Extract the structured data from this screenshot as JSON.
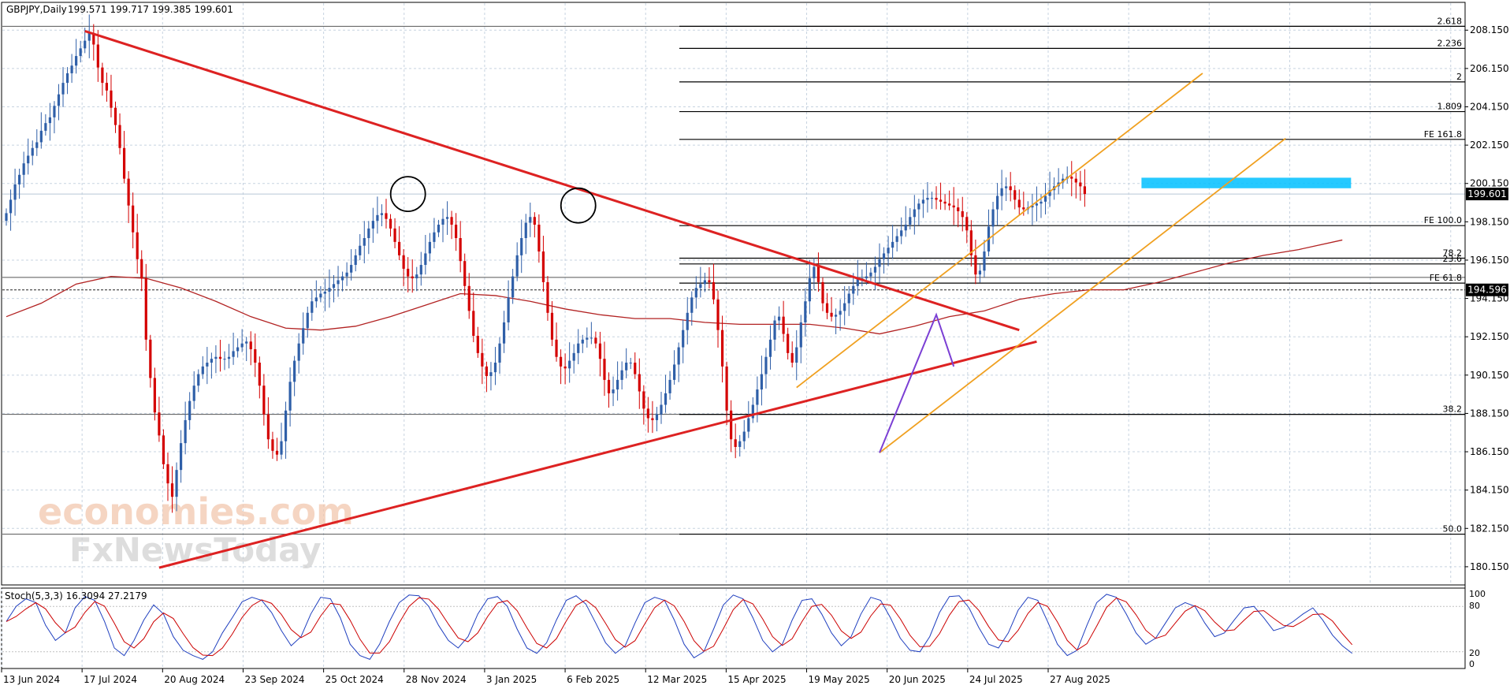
{
  "header": {
    "symbol_label": "GBPJPY,Daily",
    "ohlc_label": "199.571 199.717 199.385 199.601"
  },
  "indicator": {
    "label": "Stoch(5,3,3) 16.3094 27.2179",
    "levels": [
      "100",
      "80",
      "20",
      "0"
    ]
  },
  "colors": {
    "bull": "#2f5fa8",
    "bear": "#d40000",
    "trendline": "#dd2222",
    "channel": "#f0a020",
    "ma": "#b22222",
    "zone": "#00bfff",
    "stoch_main": "#1f3fbf",
    "stoch_signal": "#cc0000",
    "grid": "#c7d3e0"
  },
  "watermark": {
    "line1": "economies.com",
    "line2": "FxNewsToday"
  },
  "price_tags": {
    "current": "199.601",
    "dashed": "194.596"
  },
  "chart_data": {
    "type": "candlestick",
    "symbol": "GBPJPY",
    "timeframe": "Daily",
    "ylim": [
      179.2,
      209.6
    ],
    "y_ticks": [
      "208.150",
      "206.150",
      "204.150",
      "202.150",
      "200.150",
      "198.150",
      "196.150",
      "194.150",
      "192.150",
      "190.150",
      "188.150",
      "186.150",
      "184.150",
      "182.150",
      "180.150"
    ],
    "x_ticks": [
      "13 Jun 2024",
      "17 Jul 2024",
      "20 Aug 2024",
      "23 Sep 2024",
      "25 Oct 2024",
      "28 Nov 2024",
      "3 Jan 2025",
      "6 Feb 2025",
      "12 Mar 2025",
      "15 Apr 2025",
      "19 May 2025",
      "20 Jun 2025",
      "24 Jul 2025",
      "27 Aug 2025"
    ],
    "closes": [
      198.6,
      199.3,
      200.1,
      200.6,
      201.2,
      201.6,
      202.0,
      202.3,
      202.9,
      203.3,
      203.6,
      204.2,
      204.8,
      205.4,
      205.9,
      206.3,
      206.8,
      207.2,
      207.6,
      208.0,
      207.4,
      206.2,
      205.4,
      205.0,
      204.1,
      203.2,
      202.0,
      200.4,
      199.0,
      197.6,
      196.2,
      195.2,
      192.0,
      190.0,
      188.2,
      187.0,
      185.5,
      184.5,
      183.8,
      185.2,
      186.6,
      187.8,
      188.8,
      189.6,
      190.2,
      190.6,
      190.8,
      191.0,
      191.1,
      191.0,
      191.0,
      191.1,
      191.4,
      191.6,
      191.8,
      191.9,
      191.5,
      190.8,
      189.6,
      188.1,
      186.8,
      186.2,
      186.0,
      186.7,
      188.3,
      189.8,
      190.9,
      191.8,
      192.6,
      193.4,
      194.0,
      194.2,
      194.4,
      194.5,
      194.7,
      194.9,
      195.1,
      195.3,
      195.5,
      195.9,
      196.4,
      196.9,
      197.3,
      197.8,
      198.2,
      198.5,
      198.6,
      198.3,
      197.8,
      197.1,
      196.4,
      195.7,
      195.3,
      195.2,
      195.4,
      195.9,
      196.5,
      197.1,
      197.6,
      198.0,
      198.3,
      198.4,
      198.0,
      197.3,
      196.1,
      194.8,
      193.5,
      192.2,
      191.3,
      190.6,
      190.1,
      190.3,
      190.8,
      191.8,
      192.9,
      194.2,
      195.3,
      196.4,
      197.3,
      198.1,
      198.4,
      198.0,
      196.6,
      195.0,
      193.4,
      192.0,
      191.1,
      190.6,
      190.5,
      190.9,
      191.3,
      191.8,
      192.0,
      192.1,
      192.1,
      191.8,
      191.0,
      189.9,
      189.2,
      189.4,
      189.9,
      190.4,
      190.8,
      190.8,
      190.2,
      189.3,
      188.4,
      187.9,
      187.8,
      188.1,
      188.6,
      189.2,
      189.9,
      190.7,
      191.6,
      192.5,
      193.4,
      194.2,
      194.7,
      194.9,
      195.1,
      195.0,
      194.1,
      192.5,
      190.6,
      188.3,
      186.8,
      186.4,
      186.7,
      187.2,
      187.9,
      188.6,
      189.4,
      190.2,
      191.1,
      192.0,
      193.0,
      193.2,
      192.3,
      191.3,
      190.8,
      191.6,
      192.9,
      194.0,
      195.2,
      195.8,
      195.0,
      193.9,
      193.4,
      193.2,
      193.3,
      193.5,
      193.9,
      194.4,
      194.8,
      195.2,
      195.2,
      195.3,
      195.5,
      195.8,
      196.2,
      196.5,
      196.8,
      197.1,
      197.4,
      197.7,
      198.0,
      198.4,
      198.8,
      199.1,
      199.3,
      199.4,
      199.4,
      199.3,
      199.2,
      199.1,
      199.0,
      198.9,
      198.7,
      198.4,
      197.7,
      196.4,
      195.4,
      195.6,
      196.6,
      197.9,
      198.8,
      199.5,
      199.9,
      200.0,
      199.8,
      199.3,
      198.9,
      198.8,
      198.9,
      199.0,
      199.1,
      199.2,
      199.5,
      199.8,
      200.0,
      200.2,
      200.4,
      200.5,
      200.4,
      200.2,
      200.0,
      199.6
    ],
    "ma_values": [
      193.2,
      193.9,
      194.9,
      195.3,
      195.2,
      194.7,
      194.0,
      193.2,
      192.6,
      192.5,
      192.7,
      193.2,
      193.8,
      194.4,
      194.3,
      194.0,
      193.6,
      193.3,
      193.1,
      193.1,
      192.9,
      192.8,
      192.8,
      192.8,
      192.6,
      192.3,
      192.7,
      193.2,
      193.5,
      194.1,
      194.4,
      194.6,
      194.6,
      195.0,
      195.5,
      196.0,
      196.4,
      196.7,
      197.2
    ],
    "ma_times": [
      0,
      8,
      16,
      24,
      32,
      40,
      48,
      56,
      64,
      72,
      80,
      88,
      96,
      104,
      112,
      120,
      128,
      136,
      144,
      152,
      160,
      168,
      176,
      184,
      192,
      200,
      208,
      216,
      224,
      232,
      240,
      248,
      256,
      264,
      272,
      280,
      288,
      296,
      306
    ],
    "horizontal_levels": [
      {
        "price": 208.35,
        "label": "2.618"
      },
      {
        "price": 207.2,
        "label": "2.236"
      },
      {
        "price": 205.45,
        "label": "2"
      },
      {
        "price": 203.9,
        "label": "1.809"
      },
      {
        "price": 202.45,
        "label": "FE 161.8"
      },
      {
        "price": 197.95,
        "label": "FE 100.0"
      },
      {
        "price": 196.25,
        "label": "78.2"
      },
      {
        "price": 195.95,
        "label": "23.6"
      },
      {
        "price": 194.95,
        "label": "FE 61.8"
      },
      {
        "price": 188.1,
        "label": "38.2"
      },
      {
        "price": 181.85,
        "label": "50.0"
      }
    ],
    "full_levels": [
      {
        "price": 208.35
      },
      {
        "price": 195.25
      },
      {
        "price": 188.1
      },
      {
        "price": 181.85
      }
    ],
    "dashed_level": 194.596,
    "current_price": 199.601,
    "resistance_zone": {
      "t0": 260,
      "t1": 308,
      "p0": 199.9,
      "p1": 200.45
    },
    "trendlines": [
      {
        "t0": 18,
        "p0": 208.1,
        "t1": 232,
        "p1": 192.5
      },
      {
        "t0": 35,
        "p0": 180.1,
        "t1": 236,
        "p1": 191.9
      }
    ],
    "channel_lines": [
      {
        "t0": 181,
        "p0": 189.5,
        "t1": 274,
        "p1": 205.9
      },
      {
        "t0": 200,
        "p0": 186.1,
        "t1": 293,
        "p1": 202.5
      }
    ],
    "wave": [
      {
        "t": 200,
        "p": 186.1
      },
      {
        "t": 213,
        "p": 193.3
      },
      {
        "t": 217,
        "p": 190.6
      }
    ],
    "circles": [
      {
        "t": 92,
        "p": 199.6
      },
      {
        "t": 131,
        "p": 199.0
      }
    ],
    "stoch": {
      "k": [
        60,
        80,
        90,
        85,
        55,
        35,
        45,
        78,
        93,
        88,
        60,
        25,
        15,
        35,
        62,
        82,
        70,
        40,
        22,
        15,
        10,
        20,
        45,
        65,
        86,
        92,
        88,
        72,
        48,
        28,
        40,
        70,
        92,
        90,
        65,
        30,
        15,
        10,
        30,
        60,
        85,
        95,
        94,
        80,
        55,
        35,
        25,
        40,
        70,
        90,
        93,
        80,
        50,
        25,
        18,
        32,
        62,
        88,
        94,
        83,
        58,
        32,
        18,
        28,
        58,
        85,
        92,
        88,
        62,
        30,
        12,
        20,
        50,
        82,
        95,
        90,
        65,
        35,
        20,
        30,
        62,
        88,
        90,
        70,
        45,
        28,
        40,
        70,
        92,
        88,
        65,
        38,
        22,
        20,
        40,
        72,
        93,
        94,
        78,
        52,
        30,
        25,
        45,
        75,
        92,
        88,
        60,
        30,
        15,
        22,
        55,
        85,
        96,
        92,
        70,
        45,
        30,
        38,
        58,
        78,
        85,
        80,
        58,
        40,
        45,
        62,
        78,
        80,
        65,
        48,
        52,
        60,
        70,
        78,
        62,
        42,
        28,
        18
      ],
      "t_start": 0,
      "t_step": 2.25
    }
  }
}
